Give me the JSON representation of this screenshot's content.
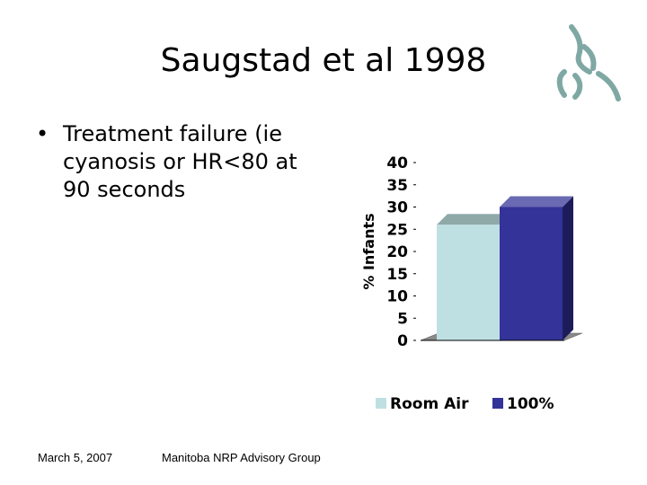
{
  "slide": {
    "title": "Saugstad et al 1998",
    "bullet": "Treatment failure (ie cyanosis or HR<80 at 90 seconds",
    "footer_date": "March 5, 2007",
    "footer_org": "Manitoba NRP Advisory Group"
  },
  "chart_data": {
    "type": "bar",
    "categories": [
      "Room Air",
      "100%"
    ],
    "values": [
      26,
      30
    ],
    "ylabel": "% Infants",
    "ylim": [
      0,
      40
    ],
    "yticks": [
      0,
      5,
      10,
      15,
      20,
      25,
      30,
      35,
      40
    ],
    "legend_position": "bottom",
    "style": "3d",
    "colors": [
      "#bfe0e3",
      "#333399"
    ]
  }
}
